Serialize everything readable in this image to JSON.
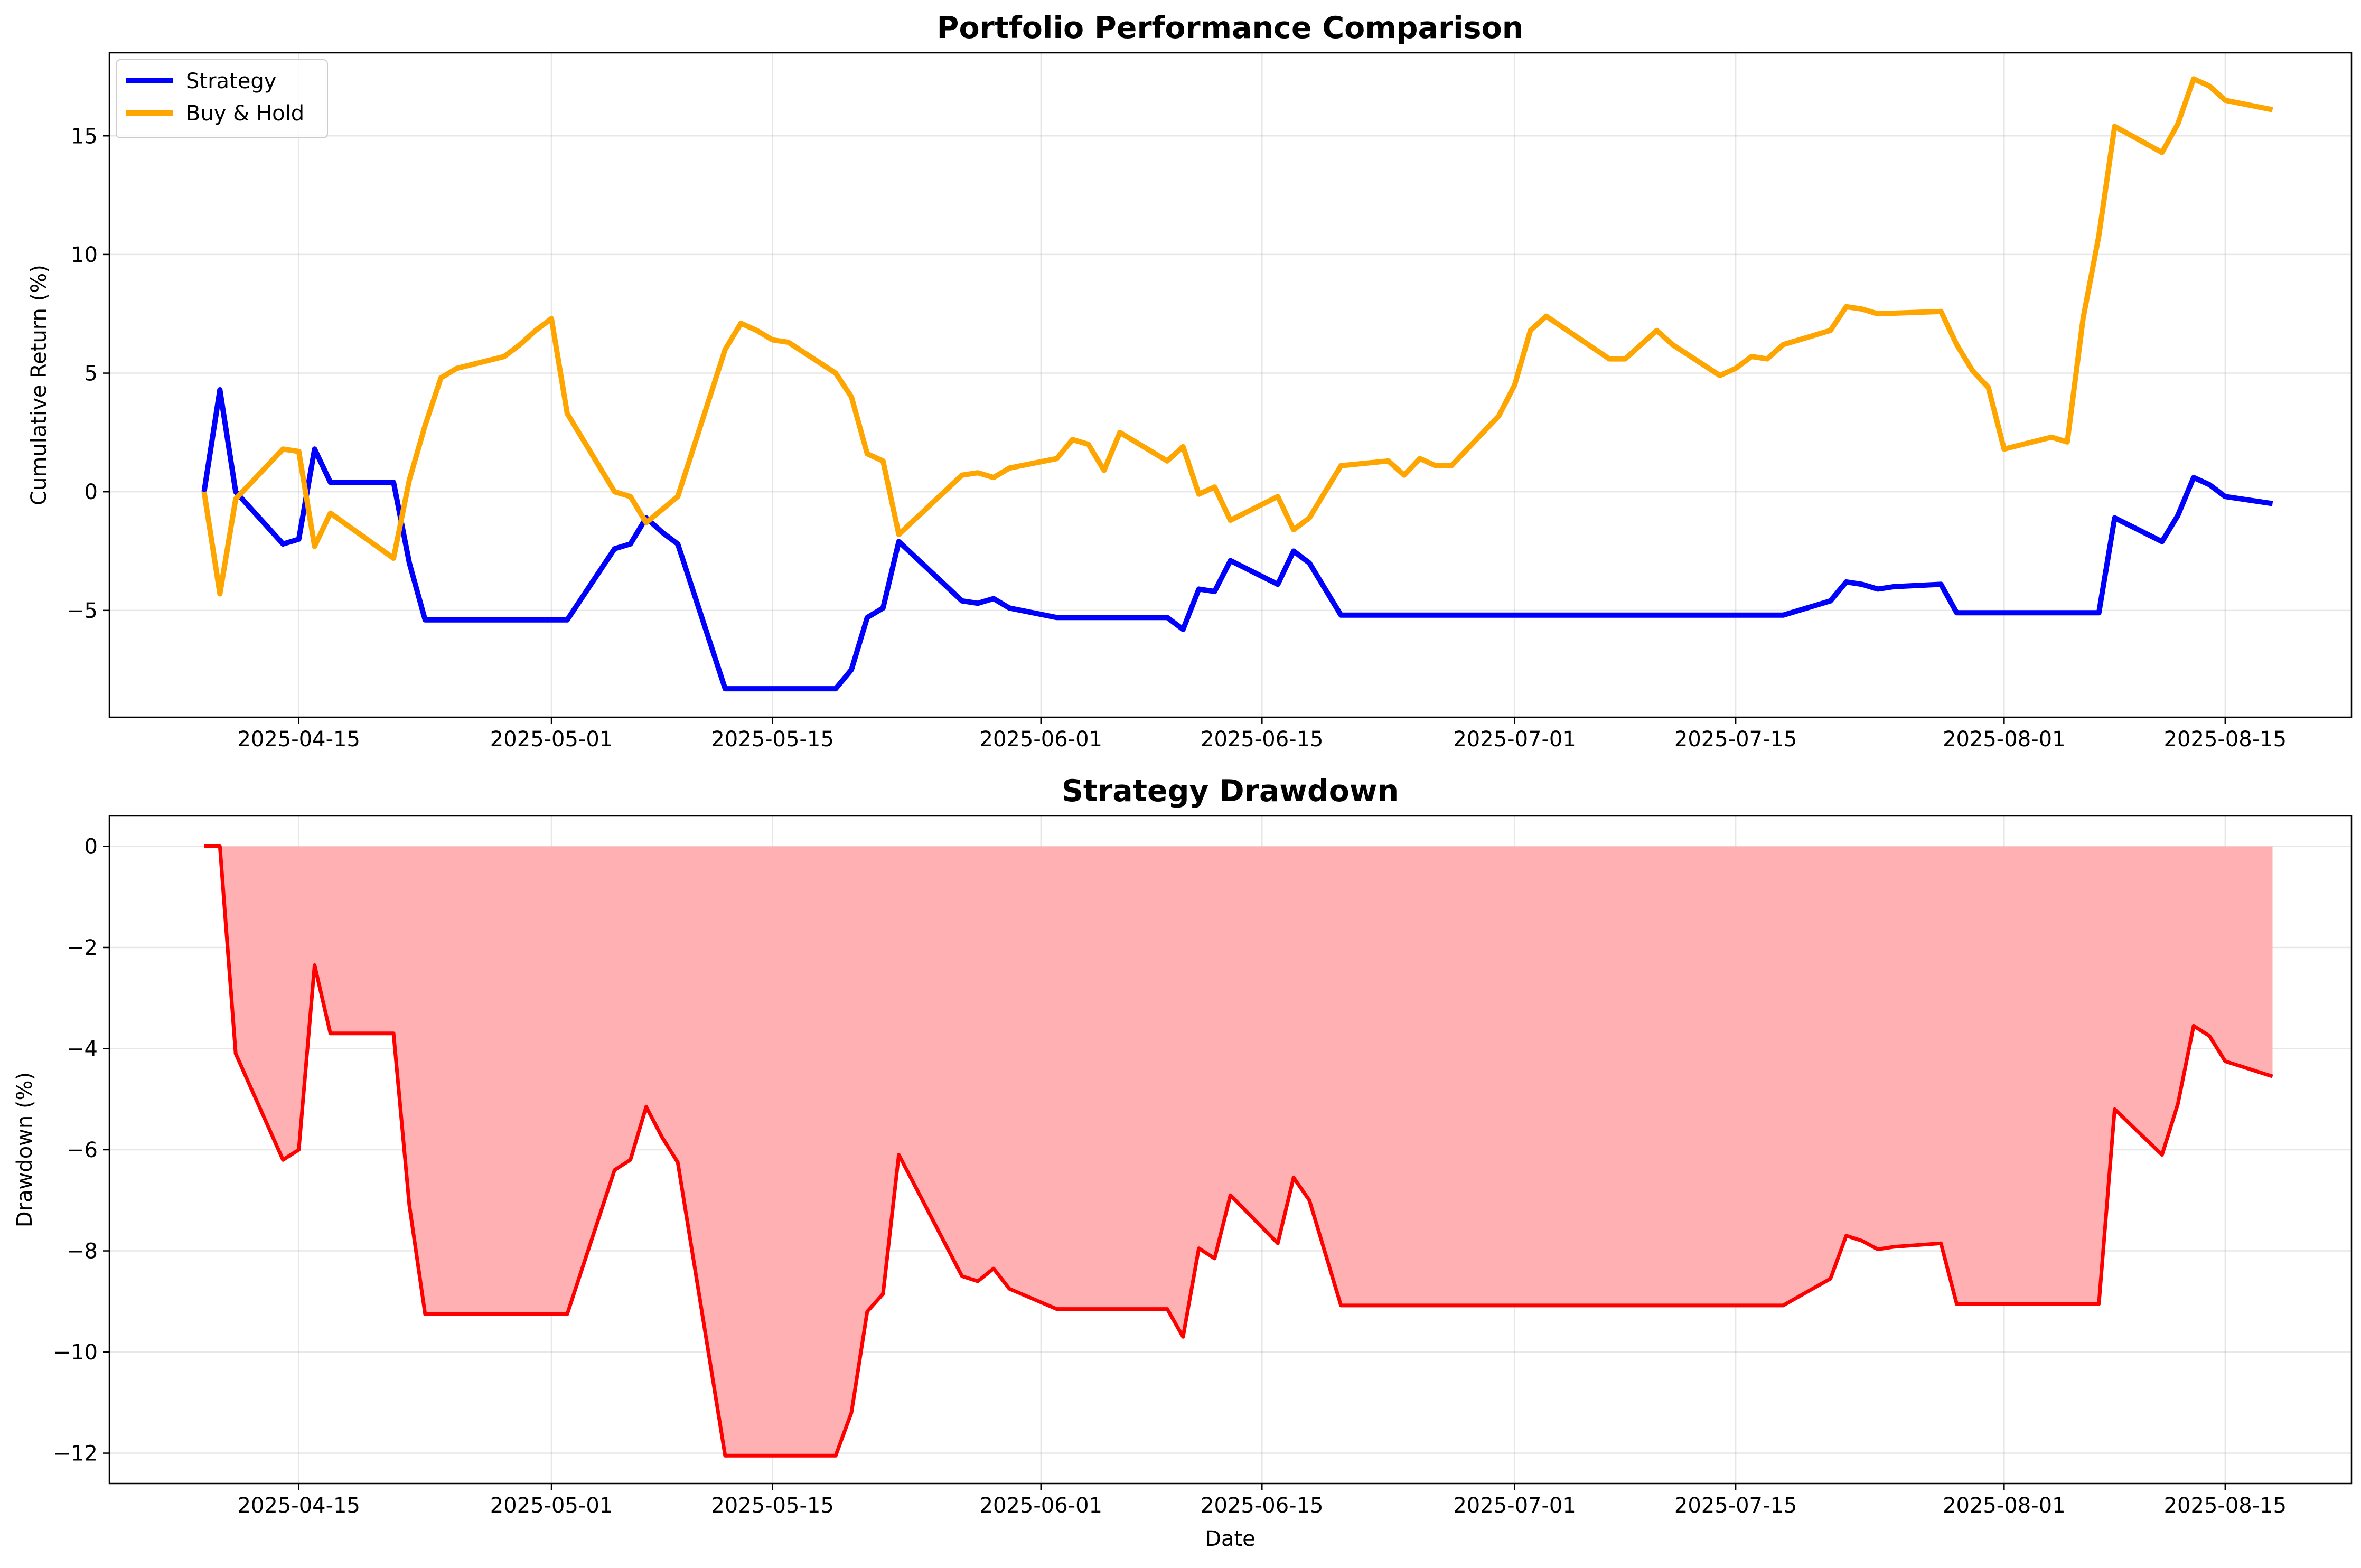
{
  "chart_data": [
    {
      "type": "line",
      "title": "Portfolio Performance Comparison",
      "xlabel": "",
      "ylabel": "Cumulative Return (%)",
      "xlim": [
        "2025-04-03",
        "2025-08-23"
      ],
      "ylim": [
        -9.5,
        18.5
      ],
      "xticks": [
        "2025-04-15",
        "2025-05-01",
        "2025-05-15",
        "2025-06-01",
        "2025-06-15",
        "2025-07-01",
        "2025-07-15",
        "2025-08-01",
        "2025-08-15"
      ],
      "yticks": [
        -5,
        0,
        5,
        10,
        15
      ],
      "ytick_labels": [
        "−5",
        "0",
        "5",
        "10",
        "15"
      ],
      "grid": true,
      "legend": "top-left",
      "series": [
        {
          "name": "Strategy",
          "color": "#0000ff",
          "points": [
            [
              "2025-04-09",
              0.0
            ],
            [
              "2025-04-10",
              4.3
            ],
            [
              "2025-04-11",
              0.0
            ],
            [
              "2025-04-14",
              -2.2
            ],
            [
              "2025-04-15",
              -2.0
            ],
            [
              "2025-04-16",
              1.8
            ],
            [
              "2025-04-17",
              0.4
            ],
            [
              "2025-04-21",
              0.4
            ],
            [
              "2025-04-22",
              -3.0
            ],
            [
              "2025-04-23",
              -5.4
            ],
            [
              "2025-05-02",
              -5.4
            ],
            [
              "2025-05-05",
              -2.4
            ],
            [
              "2025-05-06",
              -2.2
            ],
            [
              "2025-05-07",
              -1.1
            ],
            [
              "2025-05-08",
              -1.7
            ],
            [
              "2025-05-09",
              -2.2
            ],
            [
              "2025-05-12",
              -8.3
            ],
            [
              "2025-05-19",
              -8.3
            ],
            [
              "2025-05-20",
              -7.5
            ],
            [
              "2025-05-21",
              -5.3
            ],
            [
              "2025-05-22",
              -4.9
            ],
            [
              "2025-05-23",
              -2.1
            ],
            [
              "2025-05-27",
              -4.6
            ],
            [
              "2025-05-28",
              -4.7
            ],
            [
              "2025-05-29",
              -4.5
            ],
            [
              "2025-05-30",
              -4.9
            ],
            [
              "2025-06-02",
              -5.3
            ],
            [
              "2025-06-09",
              -5.3
            ],
            [
              "2025-06-10",
              -5.8
            ],
            [
              "2025-06-11",
              -4.1
            ],
            [
              "2025-06-12",
              -4.2
            ],
            [
              "2025-06-13",
              -2.9
            ],
            [
              "2025-06-16",
              -3.9
            ],
            [
              "2025-06-17",
              -2.5
            ],
            [
              "2025-06-18",
              -3.0
            ],
            [
              "2025-06-20",
              -5.2
            ],
            [
              "2025-07-18",
              -5.2
            ],
            [
              "2025-07-21",
              -4.6
            ],
            [
              "2025-07-22",
              -3.8
            ],
            [
              "2025-07-23",
              -3.9
            ],
            [
              "2025-07-24",
              -4.1
            ],
            [
              "2025-07-25",
              -4.0
            ],
            [
              "2025-07-28",
              -3.9
            ],
            [
              "2025-07-29",
              -5.1
            ],
            [
              "2025-08-07",
              -5.1
            ],
            [
              "2025-08-08",
              -1.1
            ],
            [
              "2025-08-11",
              -2.1
            ],
            [
              "2025-08-12",
              -1.0
            ],
            [
              "2025-08-13",
              0.6
            ],
            [
              "2025-08-14",
              0.3
            ],
            [
              "2025-08-15",
              -0.2
            ],
            [
              "2025-08-18",
              -0.5
            ]
          ]
        },
        {
          "name": "Buy & Hold",
          "color": "#ffa500",
          "points": [
            [
              "2025-04-09",
              0.0
            ],
            [
              "2025-04-10",
              -4.3
            ],
            [
              "2025-04-11",
              -0.3
            ],
            [
              "2025-04-14",
              1.8
            ],
            [
              "2025-04-15",
              1.7
            ],
            [
              "2025-04-16",
              -2.3
            ],
            [
              "2025-04-17",
              -0.9
            ],
            [
              "2025-04-21",
              -2.8
            ],
            [
              "2025-04-22",
              0.5
            ],
            [
              "2025-04-23",
              2.8
            ],
            [
              "2025-04-24",
              4.8
            ],
            [
              "2025-04-25",
              5.2
            ],
            [
              "2025-04-28",
              5.7
            ],
            [
              "2025-04-29",
              6.2
            ],
            [
              "2025-04-30",
              6.8
            ],
            [
              "2025-05-01",
              7.3
            ],
            [
              "2025-05-02",
              3.3
            ],
            [
              "2025-05-05",
              0.0
            ],
            [
              "2025-05-06",
              -0.2
            ],
            [
              "2025-05-07",
              -1.3
            ],
            [
              "2025-05-09",
              -0.2
            ],
            [
              "2025-05-12",
              6.0
            ],
            [
              "2025-05-13",
              7.1
            ],
            [
              "2025-05-14",
              6.8
            ],
            [
              "2025-05-15",
              6.4
            ],
            [
              "2025-05-16",
              6.3
            ],
            [
              "2025-05-19",
              5.0
            ],
            [
              "2025-05-20",
              4.0
            ],
            [
              "2025-05-21",
              1.6
            ],
            [
              "2025-05-22",
              1.3
            ],
            [
              "2025-05-23",
              -1.8
            ],
            [
              "2025-05-27",
              0.7
            ],
            [
              "2025-05-28",
              0.8
            ],
            [
              "2025-05-29",
              0.6
            ],
            [
              "2025-05-30",
              1.0
            ],
            [
              "2025-06-02",
              1.4
            ],
            [
              "2025-06-03",
              2.2
            ],
            [
              "2025-06-04",
              2.0
            ],
            [
              "2025-06-05",
              0.9
            ],
            [
              "2025-06-06",
              2.5
            ],
            [
              "2025-06-09",
              1.3
            ],
            [
              "2025-06-10",
              1.9
            ],
            [
              "2025-06-11",
              -0.1
            ],
            [
              "2025-06-12",
              0.2
            ],
            [
              "2025-06-13",
              -1.2
            ],
            [
              "2025-06-16",
              -0.2
            ],
            [
              "2025-06-17",
              -1.6
            ],
            [
              "2025-06-18",
              -1.1
            ],
            [
              "2025-06-20",
              1.1
            ],
            [
              "2025-06-23",
              1.3
            ],
            [
              "2025-06-24",
              0.7
            ],
            [
              "2025-06-25",
              1.4
            ],
            [
              "2025-06-26",
              1.1
            ],
            [
              "2025-06-27",
              1.1
            ],
            [
              "2025-06-30",
              3.2
            ],
            [
              "2025-07-01",
              4.5
            ],
            [
              "2025-07-02",
              6.8
            ],
            [
              "2025-07-03",
              7.4
            ],
            [
              "2025-07-07",
              5.6
            ],
            [
              "2025-07-08",
              5.6
            ],
            [
              "2025-07-10",
              6.8
            ],
            [
              "2025-07-11",
              6.2
            ],
            [
              "2025-07-14",
              4.9
            ],
            [
              "2025-07-15",
              5.2
            ],
            [
              "2025-07-16",
              5.7
            ],
            [
              "2025-07-17",
              5.6
            ],
            [
              "2025-07-18",
              6.2
            ],
            [
              "2025-07-21",
              6.8
            ],
            [
              "2025-07-22",
              7.8
            ],
            [
              "2025-07-23",
              7.7
            ],
            [
              "2025-07-24",
              7.5
            ],
            [
              "2025-07-28",
              7.6
            ],
            [
              "2025-07-29",
              6.2
            ],
            [
              "2025-07-30",
              5.1
            ],
            [
              "2025-07-31",
              4.4
            ],
            [
              "2025-08-01",
              1.8
            ],
            [
              "2025-08-04",
              2.3
            ],
            [
              "2025-08-05",
              2.1
            ],
            [
              "2025-08-06",
              7.3
            ],
            [
              "2025-08-07",
              10.8
            ],
            [
              "2025-08-08",
              15.4
            ],
            [
              "2025-08-11",
              14.3
            ],
            [
              "2025-08-12",
              15.5
            ],
            [
              "2025-08-13",
              17.4
            ],
            [
              "2025-08-14",
              17.1
            ],
            [
              "2025-08-15",
              16.5
            ],
            [
              "2025-08-18",
              16.1
            ]
          ]
        }
      ]
    },
    {
      "type": "area",
      "title": "Strategy Drawdown",
      "xlabel": "Date",
      "ylabel": "Drawdown (%)",
      "xlim": [
        "2025-04-03",
        "2025-08-23"
      ],
      "ylim": [
        -12.6,
        0.6
      ],
      "xticks": [
        "2025-04-15",
        "2025-05-01",
        "2025-05-15",
        "2025-06-01",
        "2025-06-15",
        "2025-07-01",
        "2025-07-15",
        "2025-08-01",
        "2025-08-15"
      ],
      "yticks": [
        -12,
        -10,
        -8,
        -6,
        -4,
        -2,
        0
      ],
      "ytick_labels": [
        "−12",
        "−10",
        "−8",
        "−6",
        "−4",
        "−2",
        "0"
      ],
      "grid": true,
      "series": [
        {
          "line_color": "#ff0000",
          "fill_color": "#ffb0b3",
          "points": [
            [
              "2025-04-09",
              0.0
            ],
            [
              "2025-04-10",
              0.0
            ],
            [
              "2025-04-11",
              -4.1
            ],
            [
              "2025-04-14",
              -6.2
            ],
            [
              "2025-04-15",
              -6.0
            ],
            [
              "2025-04-16",
              -2.35
            ],
            [
              "2025-04-17",
              -3.7
            ],
            [
              "2025-04-21",
              -3.7
            ],
            [
              "2025-04-22",
              -7.1
            ],
            [
              "2025-04-23",
              -9.25
            ],
            [
              "2025-05-02",
              -9.25
            ],
            [
              "2025-05-05",
              -6.4
            ],
            [
              "2025-05-06",
              -6.2
            ],
            [
              "2025-05-07",
              -5.15
            ],
            [
              "2025-05-08",
              -5.75
            ],
            [
              "2025-05-09",
              -6.25
            ],
            [
              "2025-05-12",
              -12.05
            ],
            [
              "2025-05-19",
              -12.05
            ],
            [
              "2025-05-20",
              -11.2
            ],
            [
              "2025-05-21",
              -9.2
            ],
            [
              "2025-05-22",
              -8.85
            ],
            [
              "2025-05-23",
              -6.1
            ],
            [
              "2025-05-27",
              -8.5
            ],
            [
              "2025-05-28",
              -8.6
            ],
            [
              "2025-05-29",
              -8.35
            ],
            [
              "2025-05-30",
              -8.75
            ],
            [
              "2025-06-02",
              -9.15
            ],
            [
              "2025-06-09",
              -9.15
            ],
            [
              "2025-06-10",
              -9.7
            ],
            [
              "2025-06-11",
              -7.95
            ],
            [
              "2025-06-12",
              -8.15
            ],
            [
              "2025-06-13",
              -6.9
            ],
            [
              "2025-06-16",
              -7.85
            ],
            [
              "2025-06-17",
              -6.55
            ],
            [
              "2025-06-18",
              -7.0
            ],
            [
              "2025-06-20",
              -9.08
            ],
            [
              "2025-07-18",
              -9.08
            ],
            [
              "2025-07-21",
              -8.55
            ],
            [
              "2025-07-22",
              -7.7
            ],
            [
              "2025-07-23",
              -7.8
            ],
            [
              "2025-07-24",
              -7.97
            ],
            [
              "2025-07-25",
              -7.92
            ],
            [
              "2025-07-28",
              -7.85
            ],
            [
              "2025-07-29",
              -9.05
            ],
            [
              "2025-08-07",
              -9.05
            ],
            [
              "2025-08-08",
              -5.2
            ],
            [
              "2025-08-11",
              -6.1
            ],
            [
              "2025-08-12",
              -5.1
            ],
            [
              "2025-08-13",
              -3.55
            ],
            [
              "2025-08-14",
              -3.75
            ],
            [
              "2025-08-15",
              -4.25
            ],
            [
              "2025-08-18",
              -4.55
            ]
          ]
        }
      ]
    }
  ]
}
